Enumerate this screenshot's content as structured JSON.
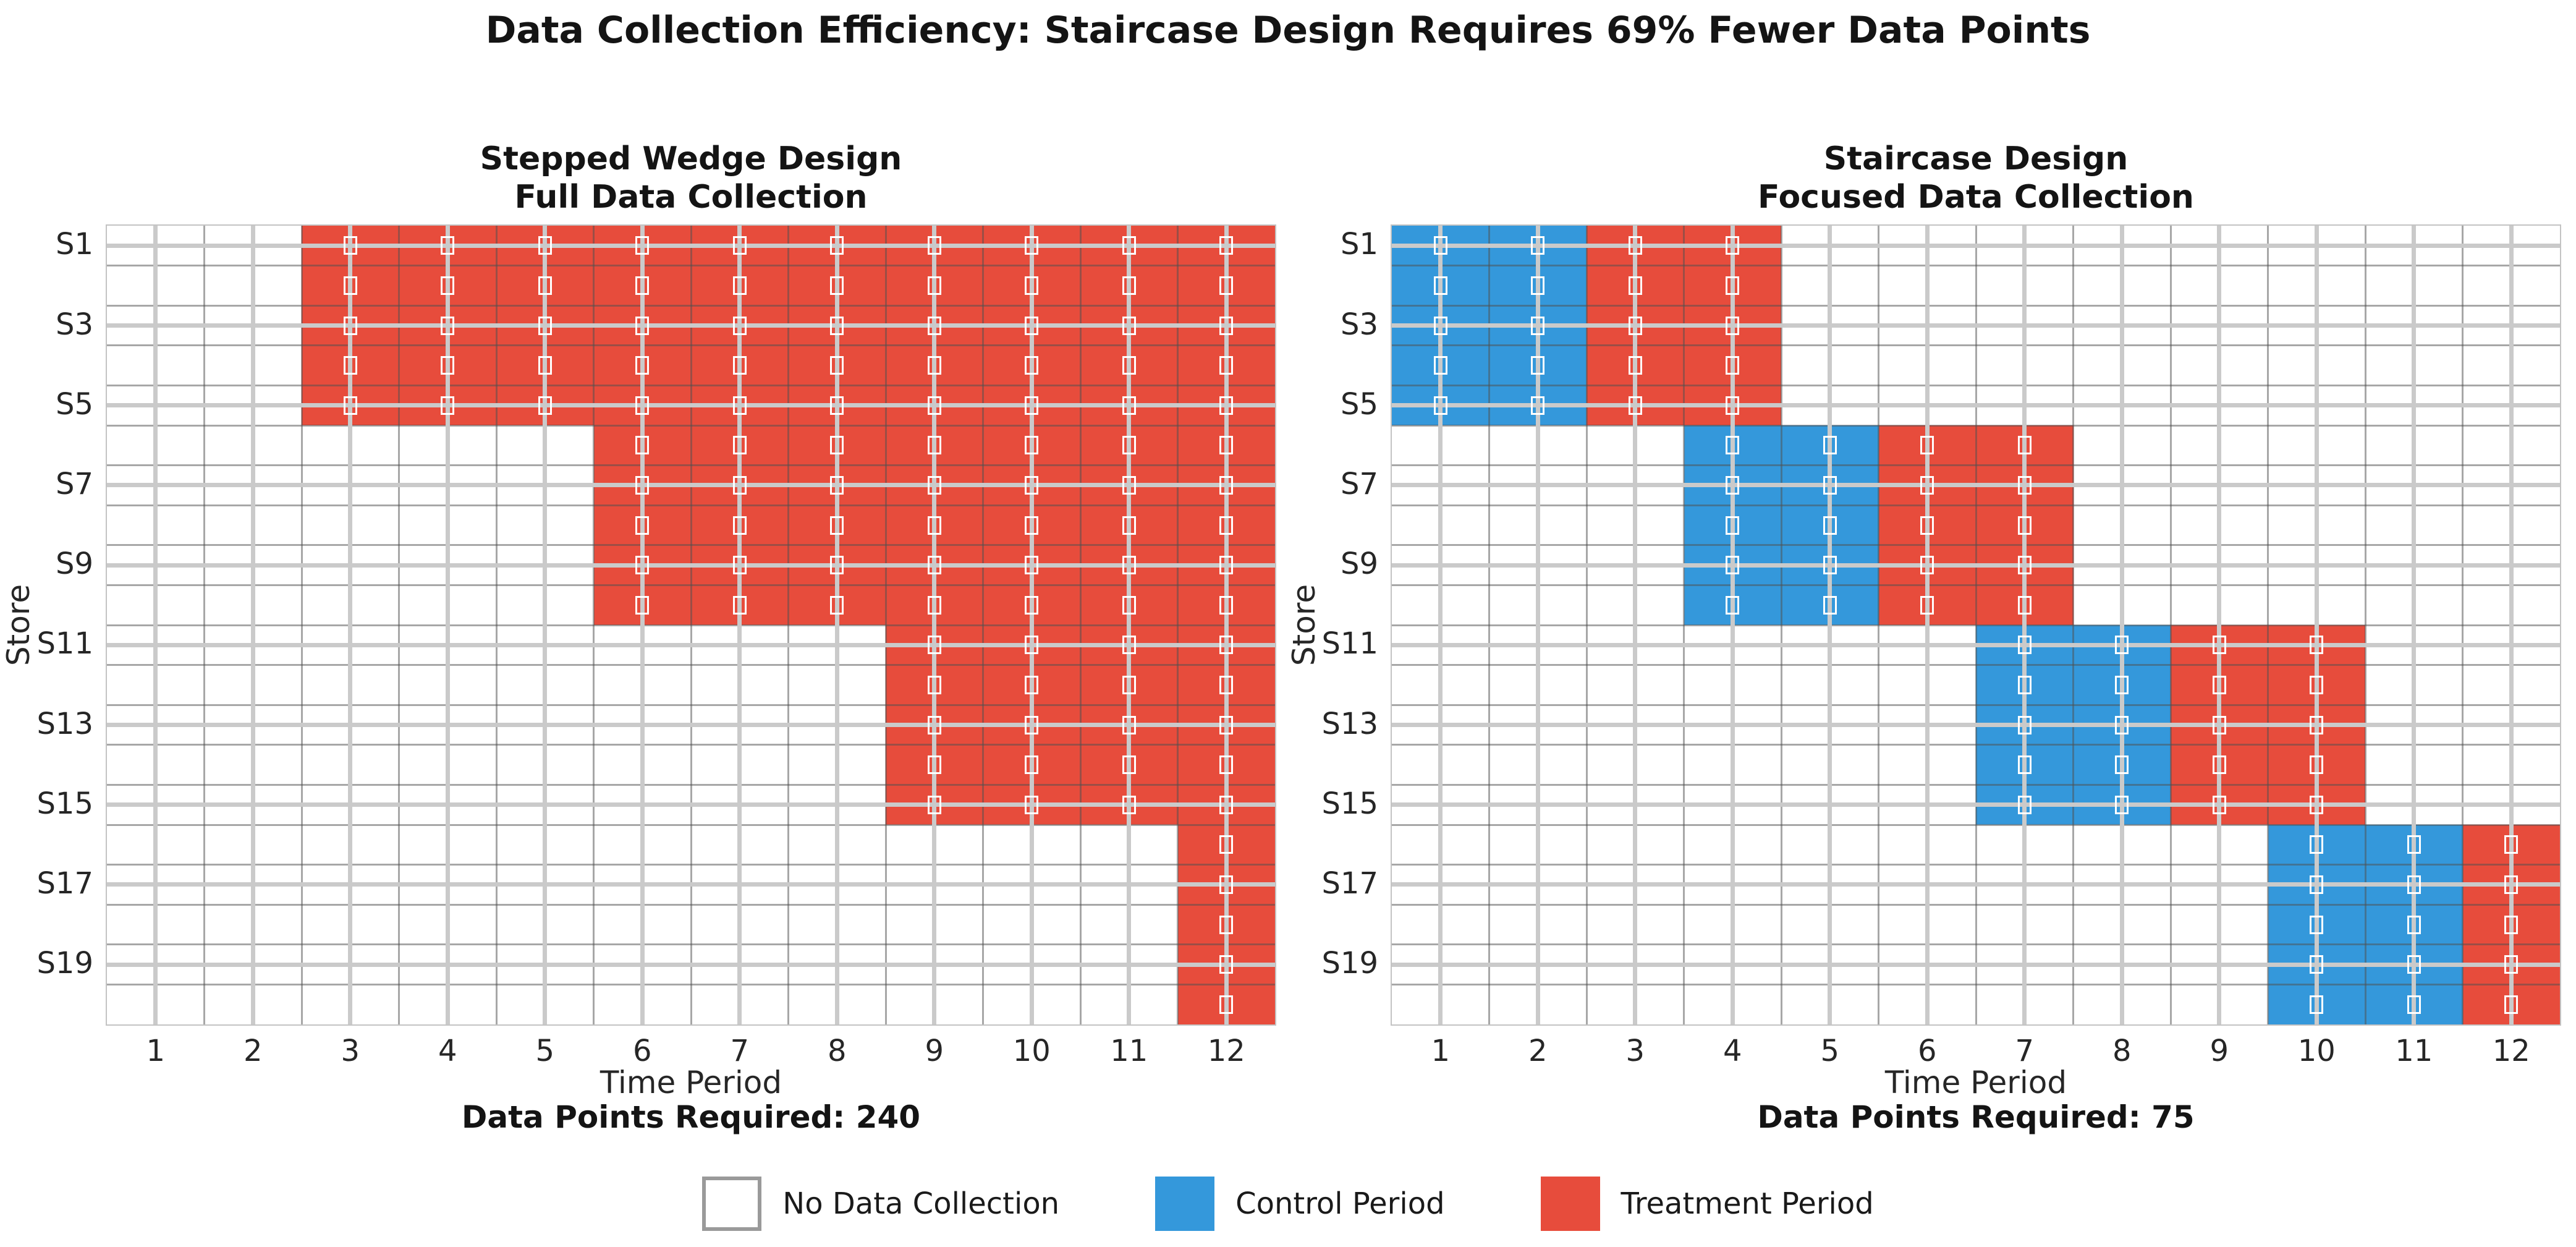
{
  "figure_title": "Data Collection Efficiency: Staircase Design Requires 69% Fewer Data Points",
  "chart_data": {
    "type": "heatmap",
    "x_label": "Time Period",
    "y_label": "Store",
    "x_ticks": [
      "1",
      "2",
      "3",
      "4",
      "5",
      "6",
      "7",
      "8",
      "9",
      "10",
      "11",
      "12"
    ],
    "y_ticks": [
      "S1",
      "S3",
      "S5",
      "S7",
      "S9",
      "S11",
      "S13",
      "S15",
      "S17",
      "S19"
    ],
    "n_stores": 20,
    "n_periods": 12,
    "grid": "on",
    "marker": {
      "shape": "hollow-rect",
      "color": "#ffffff",
      "meaning": "data point collected"
    },
    "colors": {
      "none": "#ffffff",
      "control": "#3498db",
      "treatment": "#e74c3c",
      "cell_border": "#808080",
      "tick_grid": "#cacaca",
      "spine": "#c3c3c3"
    },
    "legend": [
      {
        "label": "No Data Collection",
        "color": "#ffffff",
        "border": "#9a9a9a"
      },
      {
        "label": "Control Period",
        "color": "#3498db",
        "border": "#3498db"
      },
      {
        "label": "Treatment Period",
        "color": "#e74c3c",
        "border": "#e74c3c"
      }
    ],
    "charts": [
      {
        "title_line1": "Stepped Wedge Design",
        "title_line2": "Full Data Collection",
        "caption": "Data Points Required: 240",
        "data_points_required": 240,
        "rows": [
          {
            "store": "S1",
            "control": [],
            "treatment": [
              3,
              4,
              5,
              6,
              7,
              8,
              9,
              10,
              11,
              12
            ]
          },
          {
            "store": "S2",
            "control": [],
            "treatment": [
              3,
              4,
              5,
              6,
              7,
              8,
              9,
              10,
              11,
              12
            ]
          },
          {
            "store": "S3",
            "control": [],
            "treatment": [
              3,
              4,
              5,
              6,
              7,
              8,
              9,
              10,
              11,
              12
            ]
          },
          {
            "store": "S4",
            "control": [],
            "treatment": [
              3,
              4,
              5,
              6,
              7,
              8,
              9,
              10,
              11,
              12
            ]
          },
          {
            "store": "S5",
            "control": [],
            "treatment": [
              3,
              4,
              5,
              6,
              7,
              8,
              9,
              10,
              11,
              12
            ]
          },
          {
            "store": "S6",
            "control": [],
            "treatment": [
              6,
              7,
              8,
              9,
              10,
              11,
              12
            ]
          },
          {
            "store": "S7",
            "control": [],
            "treatment": [
              6,
              7,
              8,
              9,
              10,
              11,
              12
            ]
          },
          {
            "store": "S8",
            "control": [],
            "treatment": [
              6,
              7,
              8,
              9,
              10,
              11,
              12
            ]
          },
          {
            "store": "S9",
            "control": [],
            "treatment": [
              6,
              7,
              8,
              9,
              10,
              11,
              12
            ]
          },
          {
            "store": "S10",
            "control": [],
            "treatment": [
              6,
              7,
              8,
              9,
              10,
              11,
              12
            ]
          },
          {
            "store": "S11",
            "control": [],
            "treatment": [
              9,
              10,
              11,
              12
            ]
          },
          {
            "store": "S12",
            "control": [],
            "treatment": [
              9,
              10,
              11,
              12
            ]
          },
          {
            "store": "S13",
            "control": [],
            "treatment": [
              9,
              10,
              11,
              12
            ]
          },
          {
            "store": "S14",
            "control": [],
            "treatment": [
              9,
              10,
              11,
              12
            ]
          },
          {
            "store": "S15",
            "control": [],
            "treatment": [
              9,
              10,
              11,
              12
            ]
          },
          {
            "store": "S16",
            "control": [],
            "treatment": [
              12
            ]
          },
          {
            "store": "S17",
            "control": [],
            "treatment": [
              12
            ]
          },
          {
            "store": "S18",
            "control": [],
            "treatment": [
              12
            ]
          },
          {
            "store": "S19",
            "control": [],
            "treatment": [
              12
            ]
          },
          {
            "store": "S20",
            "control": [],
            "treatment": [
              12
            ]
          }
        ]
      },
      {
        "title_line1": "Staircase Design",
        "title_line2": "Focused Data Collection",
        "caption": "Data Points Required: 75",
        "data_points_required": 75,
        "rows": [
          {
            "store": "S1",
            "control": [
              1,
              2
            ],
            "treatment": [
              3,
              4
            ]
          },
          {
            "store": "S2",
            "control": [
              1,
              2
            ],
            "treatment": [
              3,
              4
            ]
          },
          {
            "store": "S3",
            "control": [
              1,
              2
            ],
            "treatment": [
              3,
              4
            ]
          },
          {
            "store": "S4",
            "control": [
              1,
              2
            ],
            "treatment": [
              3,
              4
            ]
          },
          {
            "store": "S5",
            "control": [
              1,
              2
            ],
            "treatment": [
              3,
              4
            ]
          },
          {
            "store": "S6",
            "control": [
              4,
              5
            ],
            "treatment": [
              6,
              7
            ]
          },
          {
            "store": "S7",
            "control": [
              4,
              5
            ],
            "treatment": [
              6,
              7
            ]
          },
          {
            "store": "S8",
            "control": [
              4,
              5
            ],
            "treatment": [
              6,
              7
            ]
          },
          {
            "store": "S9",
            "control": [
              4,
              5
            ],
            "treatment": [
              6,
              7
            ]
          },
          {
            "store": "S10",
            "control": [
              4,
              5
            ],
            "treatment": [
              6,
              7
            ]
          },
          {
            "store": "S11",
            "control": [
              7,
              8
            ],
            "treatment": [
              9,
              10
            ]
          },
          {
            "store": "S12",
            "control": [
              7,
              8
            ],
            "treatment": [
              9,
              10
            ]
          },
          {
            "store": "S13",
            "control": [
              7,
              8
            ],
            "treatment": [
              9,
              10
            ]
          },
          {
            "store": "S14",
            "control": [
              7,
              8
            ],
            "treatment": [
              9,
              10
            ]
          },
          {
            "store": "S15",
            "control": [
              7,
              8
            ],
            "treatment": [
              9,
              10
            ]
          },
          {
            "store": "S16",
            "control": [
              10,
              11
            ],
            "treatment": [
              12
            ]
          },
          {
            "store": "S17",
            "control": [
              10,
              11
            ],
            "treatment": [
              12
            ]
          },
          {
            "store": "S18",
            "control": [
              10,
              11
            ],
            "treatment": [
              12
            ]
          },
          {
            "store": "S19",
            "control": [
              10,
              11
            ],
            "treatment": [
              12
            ]
          },
          {
            "store": "S20",
            "control": [
              10,
              11
            ],
            "treatment": [
              12
            ]
          }
        ]
      }
    ]
  }
}
